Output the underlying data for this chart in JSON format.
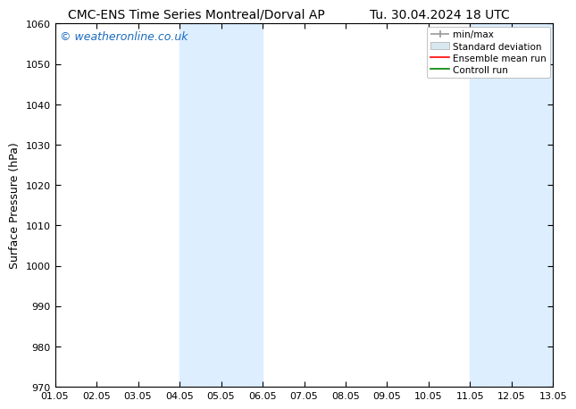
{
  "title_left": "CMC-ENS Time Series Montreal/Dorval AP",
  "title_right": "Tu. 30.04.2024 18 UTC",
  "ylabel": "Surface Pressure (hPa)",
  "watermark": "© weatheronline.co.uk",
  "ylim": [
    970,
    1060
  ],
  "yticks": [
    970,
    980,
    990,
    1000,
    1010,
    1020,
    1030,
    1040,
    1050,
    1060
  ],
  "xtick_labels": [
    "01.05",
    "02.05",
    "03.05",
    "04.05",
    "05.05",
    "06.05",
    "07.05",
    "08.05",
    "09.05",
    "10.05",
    "11.05",
    "12.05",
    "13.05"
  ],
  "xtick_positions": [
    0,
    1,
    2,
    3,
    4,
    5,
    6,
    7,
    8,
    9,
    10,
    11,
    12
  ],
  "xlim": [
    0,
    12
  ],
  "shaded_regions": [
    {
      "x_start": 3,
      "x_end": 5,
      "color": "#ddeeff"
    },
    {
      "x_start": 10,
      "x_end": 12,
      "color": "#ddeeff"
    }
  ],
  "legend_labels": [
    "min/max",
    "Standard deviation",
    "Ensemble mean run",
    "Controll run"
  ],
  "legend_line_colors": [
    "#999999",
    "#cccccc",
    "#ff0000",
    "#008000"
  ],
  "background_color": "#ffffff",
  "plot_bg_color": "#ffffff",
  "title_fontsize": 10,
  "axis_label_fontsize": 9,
  "tick_fontsize": 8,
  "watermark_color": "#1a6bbf",
  "watermark_fontsize": 9,
  "legend_fontsize": 7.5
}
